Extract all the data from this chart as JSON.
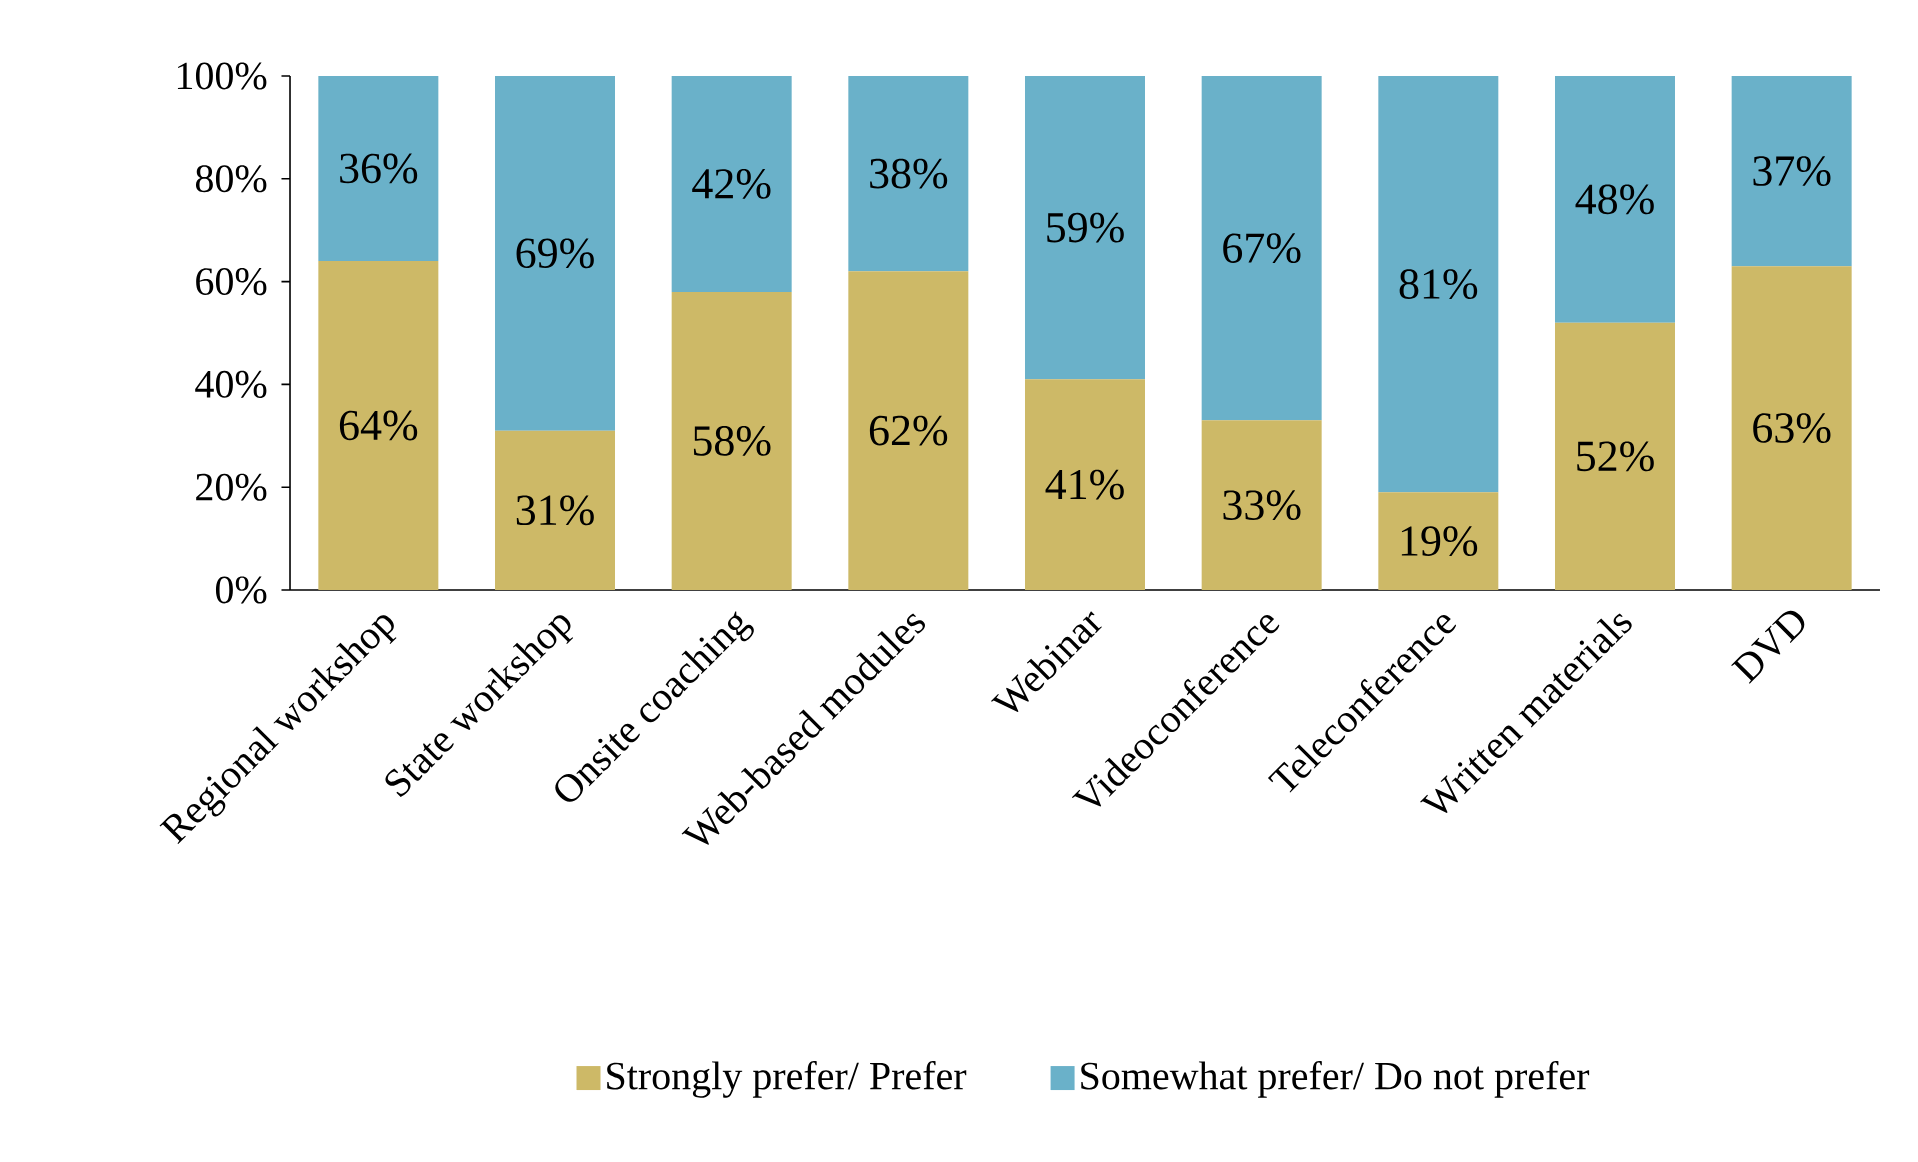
{
  "chart_data": {
    "type": "bar",
    "stacked": true,
    "categories": [
      "Regional workshop",
      "State workshop",
      "Onsite coaching",
      "Web-based modules",
      "Webinar",
      "Videoconference",
      "Teleconference",
      "Written materials",
      "DVD"
    ],
    "series": [
      {
        "name": "Strongly prefer/ Prefer",
        "color": "#cdb967",
        "values": [
          64,
          31,
          58,
          62,
          41,
          33,
          19,
          52,
          63
        ],
        "value_labels": [
          "64%",
          "31%",
          "58%",
          "62%",
          "41%",
          "33%",
          "19%",
          "52%",
          "63%"
        ]
      },
      {
        "name": "Somewhat prefer/ Do not prefer",
        "color": "#6ab1c9",
        "values": [
          36,
          69,
          42,
          38,
          59,
          67,
          81,
          48,
          37
        ],
        "value_labels": [
          "36%",
          "69%",
          "42%",
          "38%",
          "59%",
          "67%",
          "81%",
          "48%",
          "37%"
        ]
      }
    ],
    "ylim": [
      0,
      100
    ],
    "yticks": [
      {
        "value": 0,
        "label": "0%"
      },
      {
        "value": 20,
        "label": "20%"
      },
      {
        "value": 40,
        "label": "40%"
      },
      {
        "value": 60,
        "label": "60%"
      },
      {
        "value": 80,
        "label": "80%"
      },
      {
        "value": 100,
        "label": "100%"
      }
    ],
    "grid": false,
    "legend": "bottom"
  }
}
